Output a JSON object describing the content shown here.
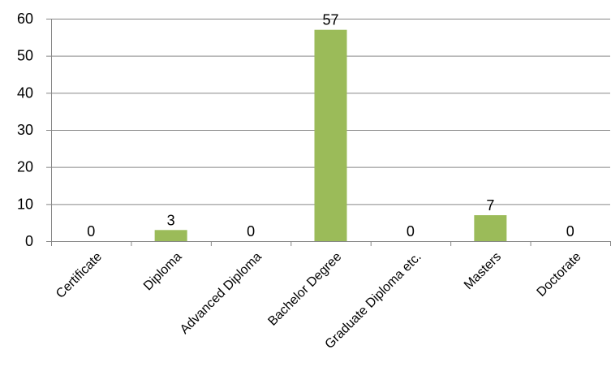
{
  "chart_data": {
    "type": "bar",
    "title": "",
    "xlabel": "",
    "ylabel": "",
    "categories": [
      "Certificate",
      "Diploma",
      "Advanced Diploma",
      "Bachelor Degree",
      "Graduate Diploma etc.",
      "Masters",
      "Doctorate"
    ],
    "values": [
      0,
      3,
      0,
      57,
      0,
      7,
      0
    ],
    "ylim": [
      0,
      60
    ],
    "yticks": [
      0,
      10,
      20,
      30,
      40,
      50,
      60
    ],
    "grid": true,
    "legend": "none",
    "bar_color": "#9bbb59",
    "grid_color": "#868686",
    "axis_color": "#868686"
  }
}
